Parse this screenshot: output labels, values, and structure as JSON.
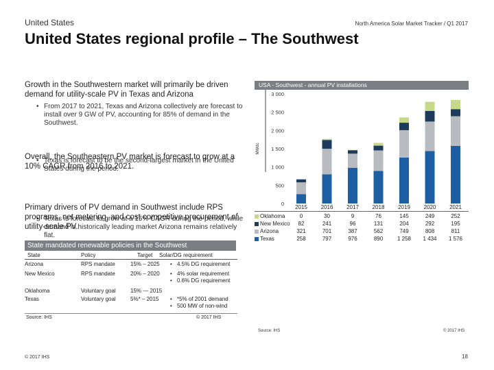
{
  "header": {
    "section": "United States",
    "report": "North America Solar Market Tracker / Q1 2017",
    "title": "United States regional profile – The  Southwest"
  },
  "left": {
    "para1": "Growth in the Southwestern market will primarily be driven demand for utility-scale PV in Texas and Arizona",
    "bullets1": [
      "From 2017 to 2021, Texas and Arizona collectively are forecast to install over 9 GW of PV, accounting for 85% of demand in the Southwest.",
      "Texas is forecast to be the second-largest market in the United States during the period."
    ],
    "para2": "Overall, the Southeastern PV market is forecast to grow at a 10% CAGR from 2016 to 2021.",
    "bullets2": [
      "Texas is forecast to grow at a 15% CAGR during the period, while demand in historically leading market Arizona remains relatively flat."
    ],
    "para3": "Primary drivers of PV demand in Southwest include RPS programs, net metering, and cost competitive procurement of utility-scale PV."
  },
  "policies": {
    "title": "State mandated renewable policies in the Southwest",
    "headers": [
      "State",
      "Policy",
      "Target",
      "Solar/DG requirement"
    ],
    "rows": [
      {
        "state": "Arizona",
        "policy": "RPS mandate",
        "target": "15% – 2025",
        "req": [
          "4.5% DG requirement"
        ]
      },
      {
        "state": "New Mexico",
        "policy": "RPS mandate",
        "target": "20% – 2020",
        "req": [
          "4% solar requirement",
          "0.6% DG requirement"
        ]
      },
      {
        "state": "Oklahoma",
        "policy": "Voluntary goal",
        "target": "15% — 2015",
        "req": []
      },
      {
        "state": "Texas",
        "policy": "Voluntary goal",
        "target": "5%* – 2015",
        "req": [
          "*5% of 2001 demand",
          "500 MW of non-wind"
        ]
      }
    ],
    "source": "Source: IHS",
    "copyright": "© 2017 IHS"
  },
  "chart_data": {
    "type": "bar",
    "stacked": true,
    "title": "USA - Southwest - annual PV installations",
    "ylabel": "MWdc",
    "ylim": [
      0,
      3000
    ],
    "yticks": [
      0,
      500,
      1000,
      1500,
      2000,
      2500,
      3000
    ],
    "categories": [
      "2015",
      "2016",
      "2017",
      "2018",
      "2019",
      "2020",
      "2021"
    ],
    "series": [
      {
        "name": "Oklahoma",
        "color": "#c6d98a",
        "values": [
          0,
          30,
          9,
          76,
          145,
          249,
          252
        ]
      },
      {
        "name": "New Mexico",
        "color": "#1f3b5c",
        "values": [
          82,
          241,
          96,
          131,
          204,
          292,
          195
        ]
      },
      {
        "name": "Arizona",
        "color": "#b8bcc0",
        "values": [
          321,
          701,
          387,
          562,
          749,
          808,
          811
        ]
      },
      {
        "name": "Texas",
        "color": "#1e5fa3",
        "values": [
          258,
          797,
          976,
          890,
          1258,
          1434,
          1576
        ]
      }
    ],
    "table_values": [
      [
        "0",
        "30",
        "9",
        "76",
        "145",
        "249",
        "252"
      ],
      [
        "82",
        "241",
        "96",
        "131",
        "204",
        "292",
        "195"
      ],
      [
        "321",
        "701",
        "387",
        "562",
        "749",
        "808",
        "811"
      ],
      [
        "258",
        "797",
        "976",
        "890",
        "1 258",
        "1 434",
        "1 576"
      ]
    ],
    "grid": false,
    "legend": "table-below",
    "source": "Source: IHS",
    "copyright": "© 2017 IHS"
  },
  "footer": {
    "copyright": "© 2017 IHS",
    "page": "18"
  }
}
